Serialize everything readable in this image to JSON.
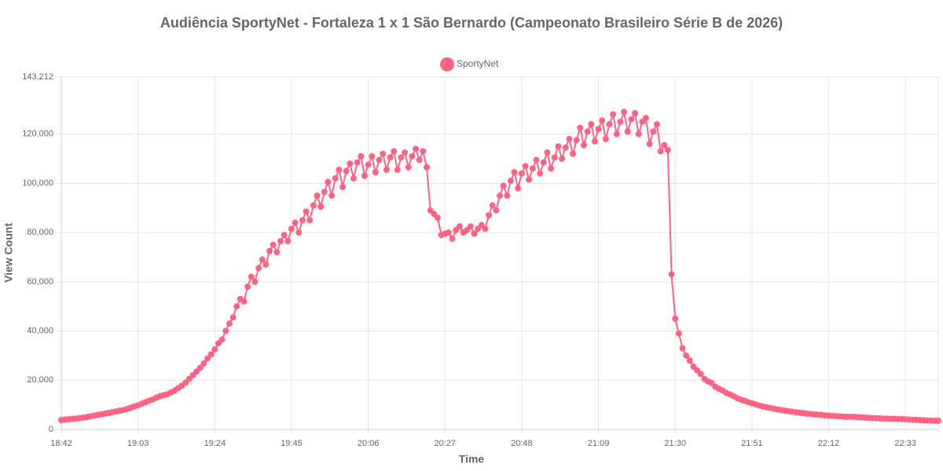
{
  "chart_data": {
    "type": "line",
    "title": "Audiência SportyNet - Fortaleza 1 x 1 São Bernardo (Campeonato Brasileiro Série B de 2026)",
    "xlabel": "Time",
    "ylabel": "View Count",
    "ylim": [
      0,
      143212
    ],
    "yticks": [
      0,
      {
        "value": 20000,
        "label": "20,000"
      },
      {
        "value": 40000,
        "label": "40,000"
      },
      {
        "value": 60000,
        "label": "60,000"
      },
      {
        "value": 80000,
        "label": "80,000"
      },
      {
        "value": 100000,
        "label": "100,000"
      },
      {
        "value": 120000,
        "label": "120,000"
      },
      {
        "value": 143212,
        "label": "143,212"
      }
    ],
    "grid": true,
    "legend": "top",
    "categories": [
      "18:42",
      null,
      null,
      null,
      null,
      null,
      null,
      null,
      null,
      null,
      null,
      null,
      null,
      null,
      null,
      null,
      null,
      null,
      null,
      null,
      null,
      "19:03",
      null,
      null,
      null,
      null,
      null,
      null,
      null,
      null,
      null,
      null,
      null,
      null,
      null,
      null,
      null,
      null,
      null,
      null,
      null,
      null,
      "19:24",
      null,
      null,
      null,
      null,
      null,
      null,
      null,
      null,
      null,
      null,
      null,
      null,
      null,
      null,
      null,
      null,
      null,
      null,
      null,
      null,
      "19:45",
      null,
      null,
      null,
      null,
      null,
      null,
      null,
      null,
      null,
      null,
      null,
      null,
      null,
      null,
      null,
      null,
      null,
      null,
      null,
      null,
      "20:06",
      null,
      null,
      null,
      null,
      null,
      null,
      null,
      null,
      null,
      null,
      null,
      null,
      null,
      null,
      null,
      null,
      null,
      null,
      null,
      null,
      "20:27",
      null,
      null,
      null,
      null,
      null,
      null,
      null,
      null,
      null,
      null,
      null,
      null,
      null,
      null,
      null,
      null,
      null,
      null,
      null,
      null,
      "20:48",
      null,
      null,
      null,
      null,
      null,
      null,
      null,
      null,
      null,
      null,
      null,
      null,
      null,
      null,
      null,
      null,
      null,
      null,
      null,
      null,
      "21:09",
      null,
      null,
      null,
      null,
      null,
      null,
      null,
      null,
      null,
      null,
      null,
      null,
      null,
      null,
      null,
      null,
      null,
      null,
      null,
      null,
      "21:30",
      null,
      null,
      null,
      null,
      null,
      null,
      null,
      null,
      null,
      null,
      null,
      null,
      null,
      null,
      null,
      null,
      null,
      null,
      null,
      null,
      "21:51",
      null,
      null,
      null,
      null,
      null,
      null,
      null,
      null,
      null,
      null,
      null,
      null,
      null,
      null,
      null,
      null,
      null,
      null,
      null,
      null,
      "22:12",
      null,
      null,
      null,
      null,
      null,
      null,
      null,
      null,
      null,
      null,
      null,
      null,
      null,
      null,
      null,
      null,
      null,
      null,
      null,
      null,
      "22:33",
      null,
      null,
      null,
      null,
      null,
      null,
      null,
      null,
      null
    ],
    "series": [
      {
        "name": "SportyNet",
        "color": "#ff6384",
        "values": [
          3800,
          4000,
          4100,
          4300,
          4400,
          4600,
          4800,
          5000,
          5300,
          5600,
          5900,
          6100,
          6400,
          6700,
          7000,
          7300,
          7600,
          7900,
          8300,
          8800,
          9300,
          9800,
          10400,
          11000,
          11600,
          12200,
          12900,
          13500,
          13900,
          14200,
          15000,
          15800,
          16800,
          17800,
          19000,
          20500,
          22000,
          23500,
          25000,
          26800,
          28800,
          30500,
          32500,
          35000,
          36500,
          40000,
          43000,
          45500,
          50000,
          53000,
          52000,
          58000,
          62000,
          60000,
          65500,
          69000,
          67000,
          72500,
          75000,
          72000,
          76500,
          79000,
          76500,
          81500,
          84000,
          80000,
          85000,
          88500,
          85000,
          91000,
          95000,
          90500,
          96500,
          100500,
          95000,
          102000,
          105500,
          98500,
          105000,
          108000,
          102000,
          108500,
          111000,
          103000,
          107500,
          111000,
          104500,
          109500,
          112000,
          105500,
          110500,
          113000,
          105500,
          110500,
          112500,
          106500,
          111000,
          114000,
          109500,
          113000,
          106500,
          89000,
          87500,
          86000,
          79000,
          79500,
          80000,
          77500,
          81000,
          82500,
          80000,
          81000,
          82500,
          79500,
          81500,
          83000,
          81500,
          87000,
          91000,
          89000,
          95000,
          99000,
          95000,
          101000,
          104500,
          98000,
          104000,
          107000,
          101500,
          106000,
          109500,
          104000,
          108500,
          112500,
          106000,
          110500,
          115000,
          110000,
          114500,
          118000,
          112000,
          117500,
          122500,
          115500,
          121000,
          124000,
          117000,
          122000,
          125500,
          118000,
          124000,
          128000,
          120000,
          125000,
          129000,
          121000,
          126000,
          128500,
          120000,
          125000,
          126500,
          116000,
          121000,
          124000,
          113000,
          115500,
          113500,
          63000,
          45000,
          39000,
          33000,
          30000,
          28000,
          25500,
          24000,
          22500,
          20500,
          19500,
          18800,
          17300,
          16500,
          15800,
          14800,
          14200,
          13500,
          12700,
          12100,
          11600,
          11100,
          10600,
          10200,
          9700,
          9300,
          9000,
          8700,
          8400,
          8100,
          7900,
          7600,
          7400,
          7200,
          7000,
          6800,
          6600,
          6400,
          6300,
          6100,
          6000,
          5900,
          5700,
          5600,
          5500,
          5400,
          5300,
          5200,
          5100,
          5200,
          5100,
          5000,
          4900,
          4800,
          4700,
          4600,
          4600,
          4500,
          4400,
          4400,
          4300,
          4300,
          4200,
          4200,
          4100,
          4000,
          3900,
          3900,
          3800,
          3700,
          3600,
          3600,
          3500,
          3500
        ]
      }
    ]
  }
}
